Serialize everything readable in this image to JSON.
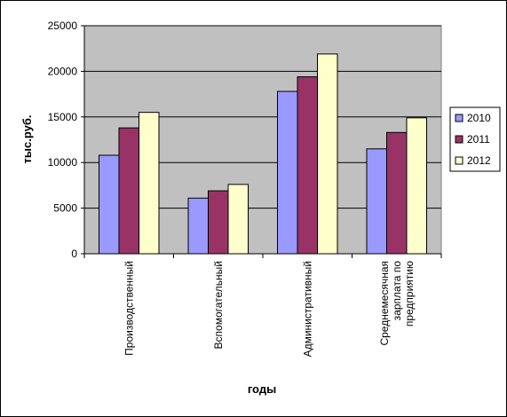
{
  "chart_data": {
    "type": "bar",
    "title": "",
    "xlabel": "годы",
    "ylabel": "тыс.руб.",
    "ylim": [
      0,
      25000
    ],
    "yticks": [
      0,
      5000,
      10000,
      15000,
      20000,
      25000
    ],
    "grid": true,
    "legend_position": "right",
    "categories": [
      [
        "Производственный"
      ],
      [
        "Вспомогательный"
      ],
      [
        "Административный"
      ],
      [
        "Среднемесячная",
        "зарплата по",
        "предприятию"
      ]
    ],
    "series": [
      {
        "name": "2010",
        "color": "#9999ff",
        "values": [
          10800,
          6100,
          17800,
          11500
        ]
      },
      {
        "name": "2011",
        "color": "#993366",
        "values": [
          13800,
          6900,
          19400,
          13300
        ]
      },
      {
        "name": "2012",
        "color": "#ffffcc",
        "values": [
          15500,
          7600,
          21900,
          14900
        ]
      }
    ],
    "plot_background": "#c0c0c0"
  }
}
